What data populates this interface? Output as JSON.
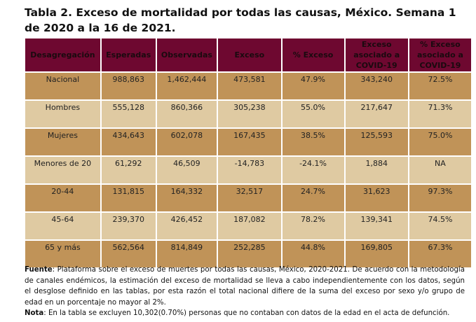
{
  "title": "Tabla 2. Exceso de mortalidad por todas las causas, México. Semana 1 de 2020 a la 16 de 2021.",
  "colors": {
    "header": "#6e0830",
    "row_dark": "#c09358",
    "row_light": "#dfcaa2"
  },
  "headers": [
    "Desagregación",
    "Esperadas",
    "Observadas",
    "Exceso",
    "% Exceso",
    "Exceso asociado a COVID-19",
    "% Exceso asociado a COVID-19"
  ],
  "rows": [
    [
      "Nacional",
      "988,863",
      "1,462,444",
      "473,581",
      "47.9%",
      "343,240",
      "72.5%"
    ],
    [
      "Hombres",
      "555,128",
      "860,366",
      "305,238",
      "55.0%",
      "217,647",
      "71.3%"
    ],
    [
      "Mujeres",
      "434,643",
      "602,078",
      "167,435",
      "38.5%",
      "125,593",
      "75.0%"
    ],
    [
      "Menores de 20",
      "61,292",
      "46,509",
      "-14,783",
      "-24.1%",
      "1,884",
      "NA"
    ],
    [
      "20-44",
      "131,815",
      "164,332",
      "32,517",
      "24.7%",
      "31,623",
      "97.3%"
    ],
    [
      "45-64",
      "239,370",
      "426,452",
      "187,082",
      "78.2%",
      "139,341",
      "74.5%"
    ],
    [
      "65 y más",
      "562,564",
      "814,849",
      "252,285",
      "44.8%",
      "169,805",
      "67.3%"
    ]
  ],
  "footer": {
    "source_label": "Fuente",
    "source_text": ": Plataforma sobre el exceso de muertes por todas las causas, México, 2020-2021. De acuerdo con la metodología de canales endémicos, la estimación del exceso de mortalidad se lleva a cabo independientemente con los datos, según el desglose definido en las tablas, por esta razón el total nacional difiere de la suma del exceso por sexo y/o grupo de edad en un porcentaje no mayor al 2%.",
    "note_label": "Nota",
    "note_text": ": En la tabla se excluyen 10,302(0.70%) personas que no contaban con datos de la edad en el acta de defunción."
  }
}
